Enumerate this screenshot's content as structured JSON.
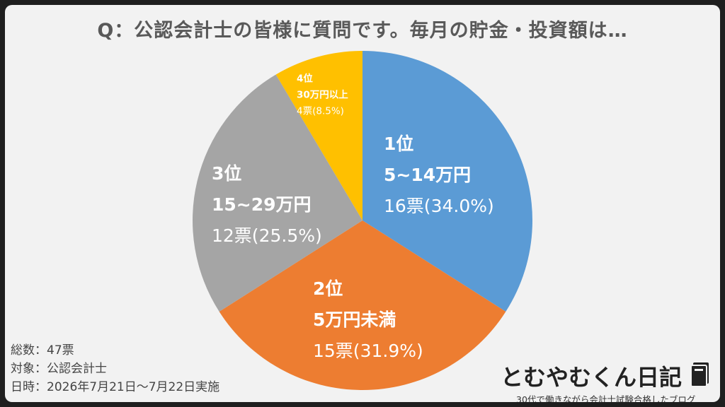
{
  "title": "Q：公認会計士の皆様に質問です。毎月の貯金・投資額は…",
  "chart_data": {
    "type": "pie",
    "title": "Q：公認会計士の皆様に質問です。毎月の貯金・投資額は…",
    "slices": [
      {
        "rank": "1位",
        "label": "5~14万円",
        "votes": "16票",
        "percent": "(34.0%)",
        "value": 34.0,
        "color": "#5b9bd5"
      },
      {
        "rank": "2位",
        "label": "5万円未満",
        "votes": "15票",
        "percent": "(31.9%)",
        "value": 31.9,
        "color": "#ed7d31"
      },
      {
        "rank": "3位",
        "label": "15~29万円",
        "votes": "12票",
        "percent": "(25.5%)",
        "value": 25.5,
        "color": "#a5a5a5"
      },
      {
        "rank": "4位",
        "label": "30万円以上",
        "votes": "4票",
        "percent": "(8.5%)",
        "value": 8.5,
        "color": "#ffc000"
      }
    ]
  },
  "meta": {
    "total": "総数：47票",
    "target": "対象：公認会計士",
    "date": "日時：2026年7月21日〜7月22日実施"
  },
  "brand": {
    "name": "とむやむくん日記",
    "tagline": "30代で働きながら会計士試験合格したブログ"
  }
}
